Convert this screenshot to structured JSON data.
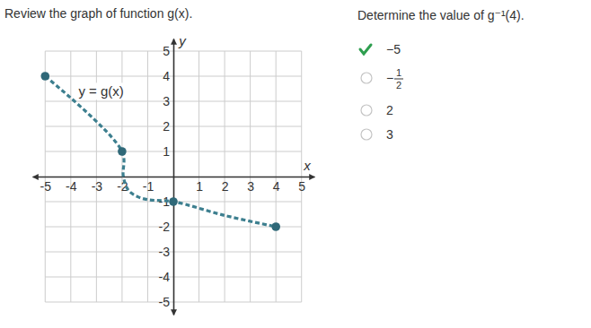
{
  "page": {
    "prompt": "Review the graph of function g(x).",
    "question": "Determine the value of g⁻¹(4).",
    "choices": [
      {
        "text": "−5",
        "selected": true
      },
      {
        "text": "−",
        "numerator": "1",
        "denominator": "2",
        "selected": false
      },
      {
        "text": "2",
        "selected": false
      },
      {
        "text": "3",
        "selected": false
      }
    ]
  },
  "chart_data": {
    "type": "line",
    "xlabel": "x",
    "ylabel": "y",
    "xlim": [
      -5.5,
      5.5
    ],
    "ylim": [
      -5.5,
      5.5
    ],
    "xticks": [
      -5,
      -4,
      -3,
      -2,
      -1,
      1,
      2,
      3,
      4,
      5
    ],
    "yticks": [
      -5,
      -4,
      -3,
      -2,
      -1,
      1,
      2,
      3,
      4,
      5
    ],
    "grid": true,
    "annotations": [
      {
        "text": "y = g(x)",
        "x": -3.7,
        "y": 3.2
      }
    ],
    "series": [
      {
        "type": "line",
        "line_style": "dashed",
        "color": "#3d7f8f",
        "x": [
          -5,
          -2,
          -1.95,
          -1.75,
          -1.4,
          -1,
          0,
          2,
          4
        ],
        "values": [
          4,
          1,
          0,
          -0.55,
          -0.8,
          -0.92,
          -1,
          -1.55,
          -2
        ]
      },
      {
        "type": "scatter",
        "marker": "circle",
        "color": "#2f6878",
        "x": [
          -5,
          -2,
          0,
          4
        ],
        "values": [
          4,
          1,
          -1,
          -2
        ]
      }
    ]
  }
}
